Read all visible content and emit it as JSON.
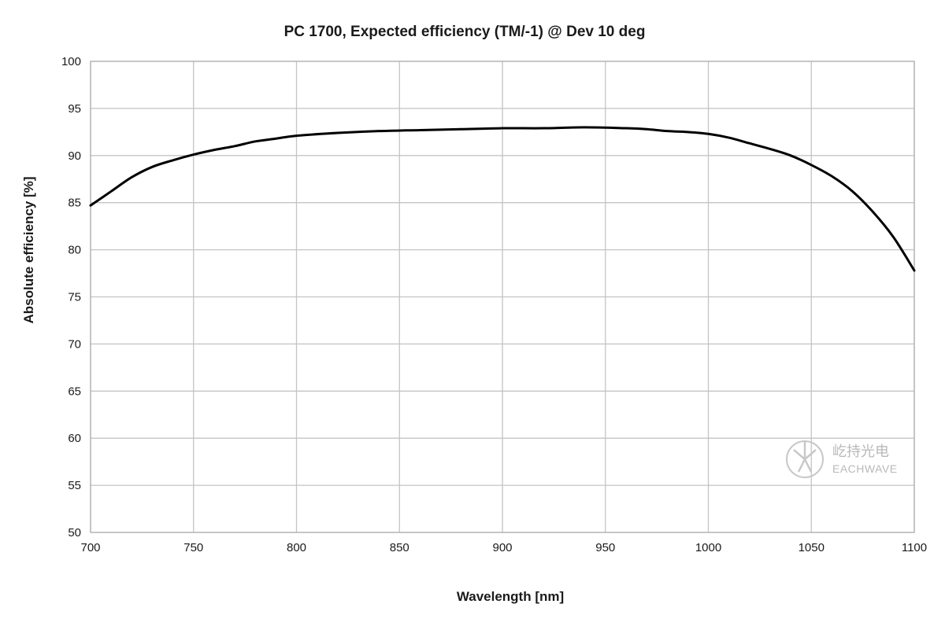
{
  "chart_data": {
    "type": "line",
    "title": "PC 1700, Expected efficiency (TM/-1) @ Dev 10 deg",
    "xlabel": "Wavelength [nm]",
    "ylabel": "Absolute efficiency [%]",
    "xlim": [
      700,
      1100
    ],
    "ylim": [
      50,
      100
    ],
    "x_ticks": [
      700,
      750,
      800,
      850,
      900,
      950,
      1000,
      1050,
      1100
    ],
    "y_ticks": [
      50,
      55,
      60,
      65,
      70,
      75,
      80,
      85,
      90,
      95,
      100
    ],
    "x_tick_labels": [
      "700",
      "750",
      "800",
      "850",
      "900",
      "950",
      "1000",
      "1050",
      "1100"
    ],
    "y_tick_labels": [
      "50",
      "55",
      "60",
      "65",
      "70",
      "75",
      "80",
      "85",
      "90",
      "95",
      "100"
    ],
    "grid": true,
    "series": [
      {
        "color": "#000000",
        "x": [
          700,
          710,
          720,
          730,
          740,
          750,
          760,
          770,
          780,
          790,
          800,
          820,
          840,
          860,
          880,
          900,
          920,
          940,
          960,
          970,
          980,
          990,
          1000,
          1010,
          1020,
          1030,
          1040,
          1050,
          1060,
          1070,
          1080,
          1090,
          1100
        ],
        "y": [
          84.7,
          86.2,
          87.7,
          88.8,
          89.5,
          90.1,
          90.6,
          91.0,
          91.5,
          91.8,
          92.1,
          92.4,
          92.6,
          92.7,
          92.8,
          92.9,
          92.9,
          93.0,
          92.9,
          92.8,
          92.6,
          92.5,
          92.3,
          91.9,
          91.3,
          90.7,
          90.0,
          89.0,
          87.8,
          86.2,
          84.0,
          81.3,
          77.8
        ]
      }
    ]
  },
  "watermark": {
    "logo_icon": "eachwave-logo-icon",
    "cn_text": "屹持光电",
    "en_text": "EACHWAVE"
  }
}
